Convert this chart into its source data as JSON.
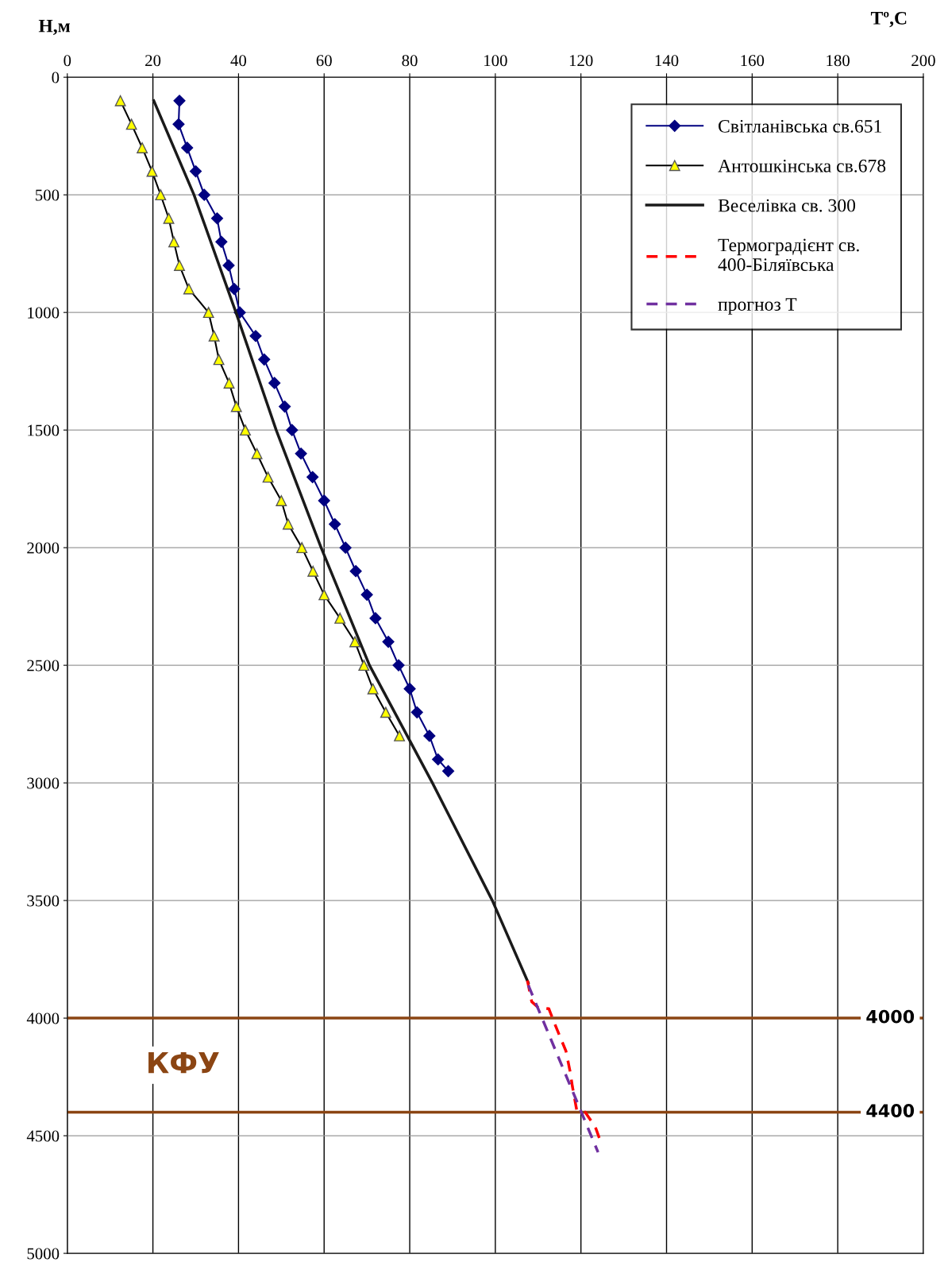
{
  "chart_data": {
    "type": "line",
    "xlabel": "Tº,C",
    "ylabel": "Н,м",
    "xlim": [
      0,
      200
    ],
    "xticks": [
      0,
      20,
      40,
      60,
      80,
      100,
      120,
      140,
      160,
      180,
      200
    ],
    "ylim": [
      5000,
      0
    ],
    "yticks": [
      0,
      500,
      1000,
      1500,
      2000,
      2500,
      3000,
      3500,
      4000,
      4500,
      5000
    ],
    "grid": true,
    "legend": "top right",
    "series": [
      {
        "name": "Світланівська св.651",
        "color": "#000080",
        "marker": "diamond",
        "line_style": "solid",
        "x": [
          26.2,
          26,
          28,
          30,
          32,
          35,
          36,
          37.7,
          39,
          40.3,
          44,
          46,
          48.4,
          50.8,
          52.5,
          54.6,
          57.3,
          60,
          62.5,
          65,
          67.4,
          70,
          72,
          75,
          77.4,
          80,
          81.7,
          84.6,
          86.6,
          89
        ],
        "values": [
          100,
          200,
          300,
          400,
          500,
          600,
          700,
          800,
          900,
          1000,
          1100,
          1200,
          1300,
          1400,
          1500,
          1600,
          1700,
          1800,
          1900,
          2000,
          2100,
          2200,
          2300,
          2400,
          2500,
          2600,
          2700,
          2800,
          2900,
          2950
        ]
      },
      {
        "name": "Антошкінська св.678",
        "color": "#ffff00",
        "marker": "triangle",
        "line_style": "solid",
        "x": [
          12.4,
          15,
          17.5,
          19.8,
          21.8,
          23.7,
          24.9,
          26.2,
          28.4,
          33,
          34.3,
          35.4,
          37.8,
          39.5,
          41.6,
          44.3,
          46.9,
          50,
          51.6,
          54.8,
          57.4,
          60,
          63.7,
          67.2,
          69.3,
          71.4,
          74.4,
          77.6
        ],
        "values": [
          100,
          200,
          300,
          400,
          500,
          600,
          700,
          800,
          900,
          1000,
          1100,
          1200,
          1300,
          1400,
          1500,
          1600,
          1700,
          1800,
          1900,
          2000,
          2100,
          2200,
          2300,
          2400,
          2500,
          2600,
          2700,
          2800
        ]
      },
      {
        "name": "Веселівка св. 300",
        "color": "#1a1a1a",
        "marker": "none",
        "line_style": "solid",
        "x": [
          20.2,
          29.6,
          39.4,
          48.8,
          59.3,
          70.6,
          85.3,
          99.3,
          107.7
        ],
        "values": [
          100,
          500,
          1000,
          1500,
          2000,
          2500,
          3000,
          3500,
          3850
        ]
      },
      {
        "name": "Термоградієнт св.\n400-Біляївська",
        "color": "#ff0000",
        "marker": "none",
        "line_style": "dashed",
        "x": [
          107.5,
          108.5,
          110,
          112.5,
          114,
          116.5,
          117.5,
          118,
          119,
          121,
          122.5,
          123.5,
          124.5
        ],
        "values": [
          3840,
          3930,
          3955,
          3960,
          4030,
          4140,
          4230,
          4290,
          4390,
          4400,
          4440,
          4470,
          4520
        ]
      },
      {
        "name": "прогноз T",
        "color": "#7030a0",
        "marker": "none",
        "line_style": "dashed",
        "x": [
          107.7,
          124
        ],
        "values": [
          3860,
          4570
        ]
      }
    ],
    "ref_lines": [
      {
        "axis": "y",
        "value": 4000,
        "label": "4000",
        "color": "#8b4513"
      },
      {
        "axis": "y",
        "value": 4400,
        "label": "4400",
        "color": "#8b4513"
      }
    ],
    "annotations": [
      "КФУ"
    ]
  }
}
